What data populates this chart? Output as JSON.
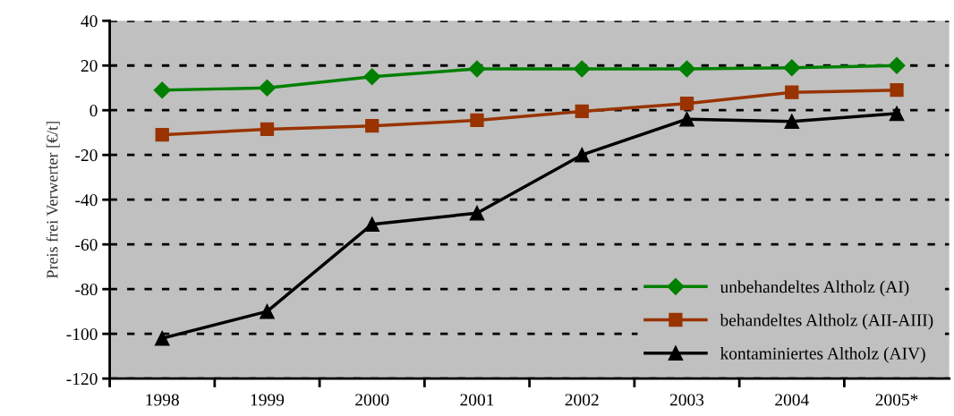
{
  "chart_data": {
    "type": "line",
    "ylabel": "Preis frei Verwerter [€/t]",
    "categories": [
      "1998",
      "1999",
      "2000",
      "2001",
      "2002",
      "2003",
      "2004",
      "2005*"
    ],
    "series": [
      {
        "name": "unbehandeltes Altholz (AI)",
        "color": "#008000",
        "marker": "diamond",
        "values": [
          9,
          10,
          15,
          18.5,
          18.5,
          18.5,
          19,
          20
        ]
      },
      {
        "name": "behandeltes Altholz (AII-AIII)",
        "color": "#993300",
        "marker": "square",
        "values": [
          -11,
          -8.5,
          -7,
          -4.5,
          -0.5,
          3,
          8,
          9
        ]
      },
      {
        "name": "kontaminiertes Altholz (AIV)",
        "color": "#000000",
        "marker": "triangle",
        "values": [
          -102,
          -90,
          -51,
          -46,
          -20,
          -4,
          -5,
          -1.5
        ]
      }
    ],
    "ylim": [
      -120,
      40
    ],
    "yticks": [
      -120,
      -100,
      -80,
      -60,
      -40,
      -20,
      0,
      20,
      40
    ],
    "grid": "y",
    "legend": "bottom right",
    "line_style": "solid"
  }
}
